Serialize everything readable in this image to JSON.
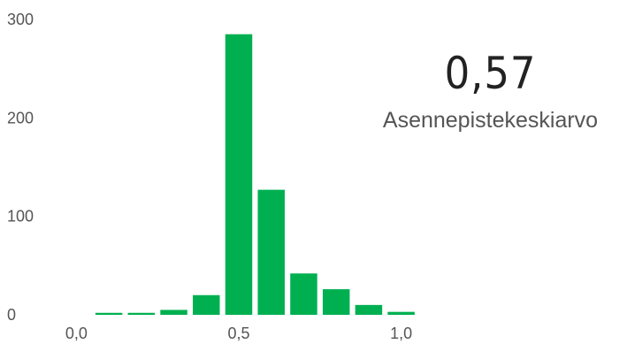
{
  "chart_data": {
    "type": "bar",
    "bin_centers": [
      0.1,
      0.2,
      0.3,
      0.4,
      0.5,
      0.6,
      0.7,
      0.8,
      0.9,
      1.0
    ],
    "values": [
      2,
      2,
      5,
      20,
      285,
      127,
      42,
      26,
      10,
      3
    ],
    "x_ticks": [
      "0,0",
      "0,5",
      "1,0"
    ],
    "x_tick_values": [
      0.0,
      0.5,
      1.0
    ],
    "y_ticks": [
      "0",
      "100",
      "200",
      "300"
    ],
    "y_tick_values": [
      0,
      100,
      200,
      300
    ],
    "xlim": [
      -0.05,
      1.05
    ],
    "ylim": [
      0,
      300
    ],
    "grid": false,
    "bar_color": "#00b050"
  },
  "kpi": {
    "value": "0,57",
    "label": "Asennepistekeskiarvo"
  }
}
